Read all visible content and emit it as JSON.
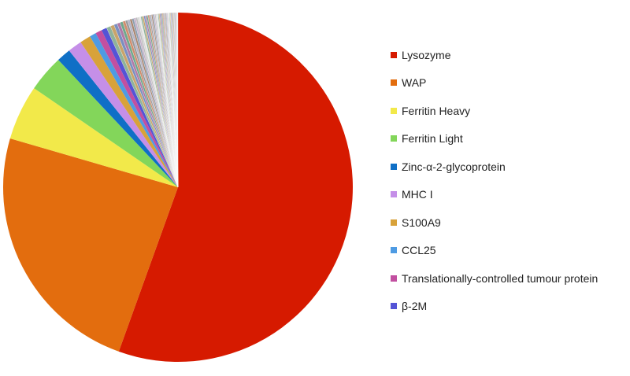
{
  "chart_data": {
    "type": "pie",
    "title": "",
    "slices": [
      {
        "label": "Lysozyme",
        "value": 55.5,
        "color": "#D61A00"
      },
      {
        "label": "WAP",
        "value": 24.0,
        "color": "#E36D0E"
      },
      {
        "label": "Ferritin Heavy",
        "value": 5.1,
        "color": "#F2E94A"
      },
      {
        "label": "Ferritin Light",
        "value": 3.4,
        "color": "#83D65A"
      },
      {
        "label": "Zinc-α-2-glycoprotein",
        "value": 1.3,
        "color": "#0F6FC6"
      },
      {
        "label": "MHC I",
        "value": 1.3,
        "color": "#C58FE8"
      },
      {
        "label": "S100A9",
        "value": 1.0,
        "color": "#D8A23A"
      },
      {
        "label": "CCL25",
        "value": 0.6,
        "color": "#4E9BE3"
      },
      {
        "label": "Translationally-controlled tumour protein",
        "value": 0.6,
        "color": "#C24FA0"
      },
      {
        "label": "β-2M",
        "value": 0.5,
        "color": "#5454D6"
      }
    ],
    "other_slices_total": 6.7,
    "other_slice_colors": [
      "#8FB39A",
      "#C9A46A",
      "#7A8FC0",
      "#B07AA6",
      "#6FA88C",
      "#D08C6C",
      "#9A9A9A",
      "#B5B5C8",
      "#A8856F",
      "#8C9EAF",
      "#C4B0C8",
      "#BDBDBD",
      "#D4D4D4",
      "#E6E6E6"
    ],
    "legend": {
      "placement": "right"
    },
    "start_angle_deg": 0,
    "direction": "clockwise"
  }
}
